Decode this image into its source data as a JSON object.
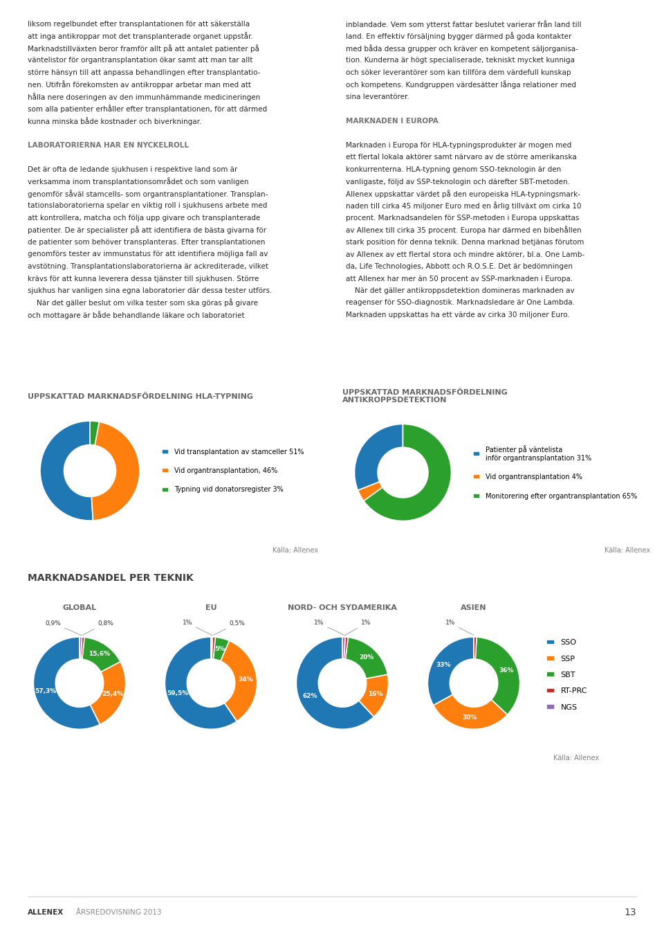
{
  "chart_data": [
    {
      "type": "donut",
      "title": "UPPSKATTAD MARKNADSFÖRDELNING HLA-TYPNING",
      "categories": [
        "Vid transplantation av stamceller 51%",
        "Vid organtransplantation, 46%",
        "Typning vid donatorsregister 3%"
      ],
      "values": [
        51,
        46,
        3
      ],
      "legend": "right",
      "annotations": [
        "Källa: Allenex"
      ]
    },
    {
      "type": "donut",
      "title": "UPPSKATTAD MARKNADSFÖRDELNING\nANTIKROPPSDETEKTION",
      "categories": [
        "Patienter på väntelista\ninför organtransplantation 31%",
        "Vid organtransplantation 4%",
        "Monitorering efter organtransplantation 65%"
      ],
      "values": [
        31,
        4,
        65
      ],
      "legend": "right",
      "annotations": [
        "Källa: Allenex"
      ]
    },
    {
      "type": "donut",
      "title": "GLOBAL",
      "categories": [
        "SSO",
        "SSP",
        "SBT",
        "RT-PRC",
        "NGS"
      ],
      "values": [
        57.3,
        25.4,
        15.6,
        0.9,
        0.8
      ],
      "value_labels": [
        "57,3%",
        "25,4%",
        "15,6%",
        "0,9%",
        "0,8%"
      ],
      "data_labels": true
    },
    {
      "type": "donut",
      "title": "EU",
      "categories": [
        "SSO",
        "SSP",
        "SBT",
        "RT-PRC",
        "NGS"
      ],
      "values": [
        59.5,
        34,
        5,
        1,
        0.5
      ],
      "value_labels": [
        "59,5%",
        "34%",
        "5%",
        "1%",
        "0,5%"
      ],
      "data_labels": true
    },
    {
      "type": "donut",
      "title": "NORD- OCH SYDAMERIKA",
      "categories": [
        "SSO",
        "SSP",
        "SBT",
        "RT-PRC",
        "NGS"
      ],
      "values": [
        62,
        16,
        20,
        1,
        1
      ],
      "value_labels": [
        "62%",
        "16%",
        "20%",
        "1%",
        "1%"
      ],
      "data_labels": true
    },
    {
      "type": "donut",
      "title": "ASIEN",
      "categories": [
        "SSO",
        "SSP",
        "SBT",
        "RT-PRC",
        "NGS"
      ],
      "values": [
        33,
        30,
        36,
        1,
        0.001
      ],
      "value_labels": [
        "33%",
        "30%",
        "36%",
        "1%",
        null
      ],
      "data_labels": true,
      "legend": "right",
      "annotations": [
        "Källa: Allenex"
      ]
    }
  ],
  "annotations": [
    [
      "liksom regelbundet efter transplantationen för att säkerställa",
      "att inga antikroppar mot det transplanterade organet uppstår.",
      "Marknadstillväxten beror framför allt på att antalet patienter på",
      "väntelistor för organtransplantation ökar samt att man tar allt",
      "större hänsyn till att anpassa behandlingen efter transplantatio-",
      "nen. Utifrån förekomsten av antikroppar arbetar man med att",
      "hålla nere doseringen av den immunhämmande medicineringen",
      "som alla patienter erhåller efter transplantationen, för att därmed",
      "kunna minska både kostnader och biverkningar.",
      "LABORATORIERNA HAR EN NYCKELROLL",
      "Det är ofta de ledande sjukhusen i respektive land som är",
      "verksamma inom transplantationsområdet och som vanligen",
      "genomför såväl stamcells- som organtransplantationer. Transplan-",
      "tationslaboratorierna spelar en viktig roll i sjukhusens arbete med",
      "att kontrollera, matcha och följa upp givare och transplanterade",
      "patienter. De är specialister på att identifiera de bästa givarna för",
      "de patienter som behöver transplanteras. Efter transplantationen",
      "genomförs tester av immunstatus för att identifiera möjliga fall av",
      "avstötning. Transplantationslaboratorierna är ackrediterade, vilket",
      "krävs för att kunna leverera dessa tjänster till sjukhusen. Större",
      "sjukhus har vanligen sina egna laboratorier där dessa tester utförs.",
      "    När det gäller beslut om vilka tester som ska göras på givare",
      "och mottagare är både behandlande läkare och laboratoriet"
    ],
    [
      "inblandade. Vem som ytterst fattar beslutet varierar från land till",
      "land. En effektiv försäljning bygger därmed på goda kontakter",
      "med båda dessa grupper och kräver en kompetent säljorganisa-",
      "tion. Kunderna är högt specialiserade, tekniskt mycket kunniga",
      "och söker leverantörer som kan tillföra dem värdefull kunskap",
      "och kompetens. Kundgruppen värdesätter långa relationer med",
      "sina leverantörer.",
      "MARKNADEN I EUROPA",
      "Marknaden i Europa för HLA-typningsprodukter är mogen med",
      "ett flertal lokala aktörer samt närvaro av de större amerikanska",
      "konkurrenterna. HLA-typning genom SSO-teknologin är den",
      "vanligaste, följd av SSP-teknologin och därefter SBT-metoden.",
      "Allenex uppskattar värdet på den europeiska HLA-typningsmark-",
      "naden till cirka 45 miljoner Euro med en årlig tillväxt om cirka 10",
      "procent. Marknadsandelen för SSP-metoden i Europa uppskattas",
      "av Allenex till cirka 35 procent. Europa har därmed en bibehållen",
      "stark position för denna teknik. Denna marknad betjänas förutom",
      "av Allenex av ett flertal stora och mindre aktörer, bl.a. One Lamb-",
      "da, Life Technologies, Abbott och R.O.S.E. Det är bedömningen",
      "att Allenex har mer än 50 procent av SSP-marknaden i Europa.",
      "    När det gäller antikroppsdetektion domineras marknaden av",
      "reagenser för SSO-diagnostik. Marknadsledare är One Lambda.",
      "Marknaden uppskattas ha ett värde av cirka 30 miljoner Euro."
    ],
    "MARKNADSANDEL PER TEKNIK",
    "ALLENEX",
    "ÅRSREDOVISNING 2013",
    "13"
  ]
}
